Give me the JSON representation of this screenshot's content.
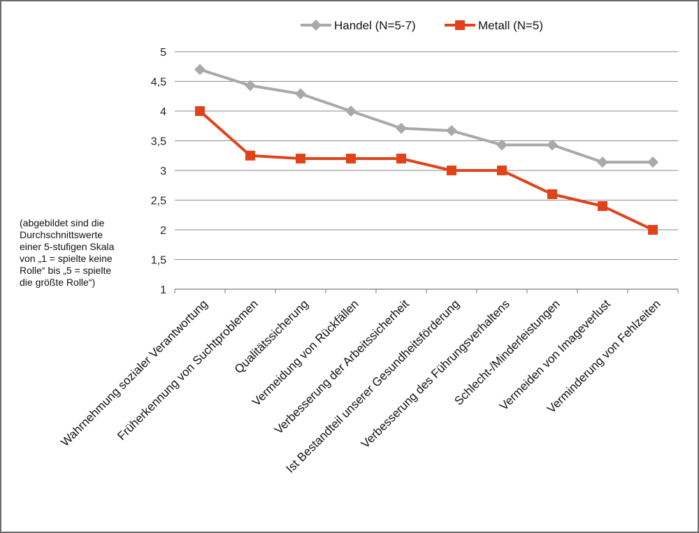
{
  "chart_data": {
    "type": "line",
    "categories": [
      "Wahrnehmung sozialer Verantwortung",
      "Früherkennung von Suchtproblemen",
      "Qualitätssicherung",
      "Vermeidung von Rückfällen",
      "Verbesserung der Arbeitssicherheit",
      "Ist Bestandteil unserer Gesundheitsförderung",
      "Verbesserung des Führungsverhaltens",
      "Schlecht-/Minderleistungen",
      "Vermeiden von Imageverlust",
      "Verminderung von Fehlzeiten"
    ],
    "series": [
      {
        "name": "Handel (N=5-7)",
        "color": "#a9a9a9",
        "marker": "diamond",
        "values": [
          4.7,
          4.43,
          4.29,
          4.0,
          3.71,
          3.67,
          3.43,
          3.43,
          3.14,
          3.14
        ]
      },
      {
        "name": "Metall (N=5)",
        "color": "#e0431a",
        "marker": "square",
        "values": [
          4.0,
          3.25,
          3.2,
          3.2,
          3.2,
          3.0,
          3.0,
          2.6,
          2.4,
          2.0
        ]
      }
    ],
    "ylim": [
      1,
      5
    ],
    "yticks": [
      "1",
      "1,5",
      "2",
      "2,5",
      "3",
      "3,5",
      "4",
      "4,5",
      "5"
    ],
    "ytick_values": [
      1,
      1.5,
      2,
      2.5,
      3,
      3.5,
      4,
      4.5,
      5
    ],
    "grid": true,
    "legend": "top-center",
    "xlabel": "",
    "ylabel": ""
  },
  "note_lines": [
    "(abgebildet sind die",
    "Durchschnittswerte",
    "einer 5-stufigen Skala",
    "von „1 = spielte keine",
    "Rolle“ bis „5 = spielte",
    "die größte Rolle“)"
  ]
}
